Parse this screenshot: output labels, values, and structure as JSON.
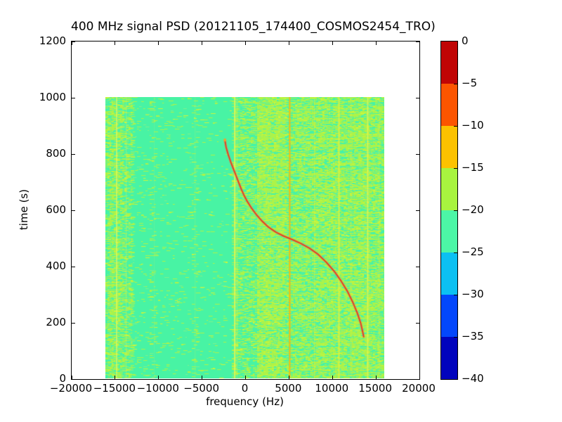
{
  "title": "400 MHz signal PSD (20121105_174400_COSMOS2454_TRO)",
  "chart_data": {
    "type": "heatmap",
    "title": "400 MHz signal PSD (20121105_174400_COSMOS2454_TRO)",
    "xlabel": "frequency (Hz)",
    "ylabel": "time (s)",
    "xlim": [
      -20000,
      20000
    ],
    "ylim": [
      0,
      1200
    ],
    "grid": false,
    "x_tick_labels": [
      "−20000",
      "−15000",
      "−10000",
      "−5000",
      "0",
      "5000",
      "10000",
      "15000",
      "20000"
    ],
    "x_tick_values": [
      -20000,
      -15000,
      -10000,
      -5000,
      0,
      5000,
      10000,
      15000,
      20000
    ],
    "y_tick_labels": [
      "0",
      "200",
      "400",
      "600",
      "800",
      "1000",
      "1200"
    ],
    "y_tick_values": [
      0,
      200,
      400,
      600,
      800,
      1000,
      1200
    ],
    "image_extent": {
      "f_min": -16000,
      "f_max": 16000,
      "t_min": 0,
      "t_max": 1000
    },
    "colorbar": {
      "tick_labels": [
        "0",
        "−5",
        "−10",
        "−15",
        "−20",
        "−25",
        "−30",
        "−35",
        "−40"
      ],
      "tick_values": [
        0,
        -5,
        -10,
        -15,
        -20,
        -25,
        -30,
        -35,
        -40
      ],
      "colors_top_to_bottom": [
        "#c00505",
        "#fc5500",
        "#fcc200",
        "#a8f43f",
        "#4cf6a6",
        "#0cc0f2",
        "#0347fb",
        "#0104bd"
      ]
    },
    "background_color": "#48f3a4",
    "noise_colors": {
      "yellow": "#adf348",
      "bright_yellow": "#ccf63a",
      "green": "#7df28c",
      "teal_speckle": "#43f2ae"
    },
    "noise_bands": [
      [
        -16000,
        -15600,
        0.5
      ],
      [
        -15600,
        -14900,
        0.62
      ],
      [
        -14900,
        -14100,
        0.42
      ],
      [
        -14100,
        -13000,
        0.3
      ],
      [
        -13000,
        -11000,
        0.05
      ],
      [
        -11000,
        -10200,
        0.1
      ],
      [
        -10200,
        -6100,
        0.035
      ],
      [
        -6100,
        -5400,
        0.09
      ],
      [
        -5400,
        -1500,
        0.03
      ],
      [
        -1500,
        -800,
        0.28
      ],
      [
        -800,
        1200,
        0.32
      ],
      [
        1200,
        4400,
        0.8
      ],
      [
        4400,
        5700,
        0.48
      ],
      [
        5700,
        7700,
        0.58
      ],
      [
        7700,
        12100,
        0.66
      ],
      [
        12100,
        14400,
        0.74
      ],
      [
        14400,
        16000,
        0.6
      ]
    ],
    "vertical_lines": [
      {
        "freq": -14700,
        "color": "#e6f75c",
        "width": 1.5,
        "alpha": 0.9
      },
      {
        "freq": -13600,
        "color": "#cdf464",
        "width": 1,
        "alpha": 0.5
      },
      {
        "freq": -10400,
        "color": "#8cf08c",
        "width": 1,
        "alpha": 0.35
      },
      {
        "freq": -5700,
        "color": "#9cf47e",
        "width": 1,
        "alpha": 0.4
      },
      {
        "freq": -1150,
        "color": "#e2f756",
        "width": 2,
        "alpha": 0.95
      },
      {
        "freq": -900,
        "color": "#d8f54e",
        "width": 1,
        "alpha": 0.6
      },
      {
        "freq": 5150,
        "color": "#ffb508",
        "width": 2,
        "alpha": 0.95
      },
      {
        "freq": 8000,
        "color": "#d9f243",
        "width": 1,
        "alpha": 0.5
      },
      {
        "freq": 10800,
        "color": "#dff23c",
        "width": 2,
        "alpha": 0.85
      },
      {
        "freq": 12200,
        "color": "#d9f243",
        "width": 1,
        "alpha": 0.5
      },
      {
        "freq": 14100,
        "color": "#e3f54e",
        "width": 2,
        "alpha": 0.8
      },
      {
        "freq": 15400,
        "color": "#d9f243",
        "width": 1,
        "alpha": 0.5
      }
    ],
    "doppler_track": {
      "description": "red S-shaped Doppler trace",
      "core_color": "#e0401f",
      "halo_color": "rgba(246,120,85,0.5)",
      "tip_color": "#ff9d20",
      "points_freq_time": [
        [
          -2280,
          846
        ],
        [
          -2150,
          822
        ],
        [
          -1900,
          795
        ],
        [
          -1600,
          768
        ],
        [
          -1300,
          744
        ],
        [
          -1000,
          720
        ],
        [
          -700,
          696
        ],
        [
          -400,
          672
        ],
        [
          -80,
          650
        ],
        [
          300,
          628
        ],
        [
          750,
          606
        ],
        [
          1300,
          583
        ],
        [
          1950,
          560
        ],
        [
          2700,
          538
        ],
        [
          3550,
          520
        ],
        [
          4450,
          506
        ],
        [
          5400,
          494
        ],
        [
          6400,
          480
        ],
        [
          7400,
          463
        ],
        [
          8400,
          441
        ],
        [
          9350,
          413
        ],
        [
          10250,
          381
        ],
        [
          11050,
          346
        ],
        [
          11800,
          308
        ],
        [
          12400,
          270
        ],
        [
          12900,
          233
        ],
        [
          13300,
          196
        ],
        [
          13550,
          162
        ],
        [
          13640,
          148
        ]
      ]
    }
  }
}
